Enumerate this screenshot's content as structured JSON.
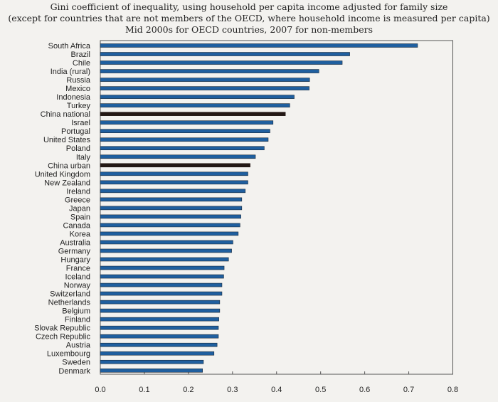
{
  "chart_data": {
    "type": "bar",
    "orientation": "horizontal",
    "title": [
      "Gini coefficient of inequality, using household per capita income adjusted for family size",
      "(except for countries that are not members of the OECD, where household income is measured per capita)",
      "Mid 2000s for OECD countries, 2007 for non-members"
    ],
    "xlabel": "",
    "ylabel": "",
    "xlim": [
      0,
      0.8
    ],
    "xticks": [
      "0.0",
      "0.1",
      "0.2",
      "0.3",
      "0.4",
      "0.5",
      "0.6",
      "0.7",
      "0.8"
    ],
    "grid": false,
    "colors": {
      "default": "#1f5f9f",
      "highlight": "#231815"
    },
    "categories": [
      "South Africa",
      "Brazil",
      "Chile",
      "India (rural)",
      "Russia",
      "Mexico",
      "Indonesia",
      "Turkey",
      "China national",
      "Israel",
      "Portugal",
      "United States",
      "Poland",
      "Italy",
      "China urban",
      "United Kingdom",
      "New Zealand",
      "Ireland",
      "Greece",
      "Japan",
      "Spain",
      "Canada",
      "Korea",
      "Australia",
      "Germany",
      "Hungary",
      "France",
      "Iceland",
      "Norway",
      "Switzerland",
      "Netherlands",
      "Belgium",
      "Finland",
      "Slovak Republic",
      "Czech Republic",
      "Austria",
      "Luxembourg",
      "Sweden",
      "Denmark"
    ],
    "values": [
      0.72,
      0.566,
      0.549,
      0.496,
      0.475,
      0.474,
      0.44,
      0.43,
      0.42,
      0.392,
      0.385,
      0.381,
      0.372,
      0.352,
      0.34,
      0.335,
      0.335,
      0.329,
      0.321,
      0.321,
      0.319,
      0.317,
      0.313,
      0.301,
      0.298,
      0.291,
      0.281,
      0.28,
      0.276,
      0.276,
      0.271,
      0.271,
      0.269,
      0.268,
      0.268,
      0.265,
      0.258,
      0.234,
      0.232
    ],
    "highlighted": [
      "China national",
      "China urban"
    ]
  }
}
